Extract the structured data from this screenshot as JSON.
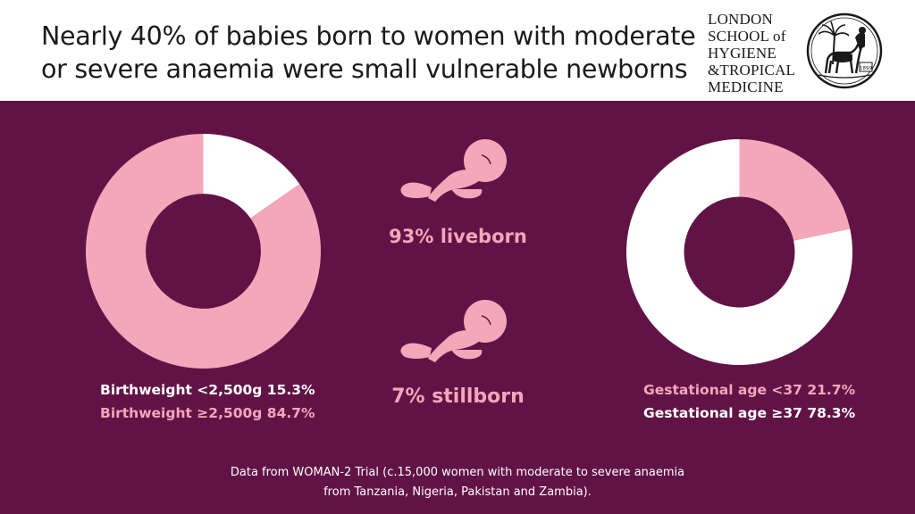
{
  "headline": {
    "line1": "Nearly 40% of babies born to women with moderate",
    "line2": "or severe anaemia were small vulnerable newborns"
  },
  "logo": {
    "line1": "LONDON",
    "line2": "SCHOOL of",
    "line3": "HYGIENE",
    "line4": "&TROPICAL",
    "line5": "MEDICINE",
    "emblem_label": "1899"
  },
  "colors": {
    "background": "#621346",
    "pink": "#f4a7b9",
    "white": "#ffffff"
  },
  "stats": {
    "liveborn": "93% liveborn",
    "stillborn": "7% stillborn"
  },
  "icons": [
    "fetus-icon",
    "fetus-icon"
  ],
  "chart_data": [
    {
      "type": "pie",
      "variant": "donut",
      "labels": [
        "Birthweight <2,500g",
        "Birthweight ≥2,500g"
      ],
      "values": [
        15.3,
        84.7
      ],
      "colors": [
        "#ffffff",
        "#f4a7b9"
      ],
      "legend": [
        {
          "text": "Birthweight <2,500g 15.3%",
          "color": "#ffffff"
        },
        {
          "text": "Birthweight ≥2,500g 84.7%",
          "color": "#f4a7b9"
        }
      ],
      "legend_position": "bottom"
    },
    {
      "type": "pie",
      "variant": "donut",
      "labels": [
        "Gestational age <37",
        "Gestational age ≥37"
      ],
      "values": [
        21.7,
        78.3
      ],
      "colors": [
        "#f4a7b9",
        "#ffffff"
      ],
      "legend": [
        {
          "text": "Gestational age <37 21.7%",
          "color": "#f4a7b9"
        },
        {
          "text": "Gestational age ≥37 78.3%",
          "color": "#ffffff"
        }
      ],
      "legend_position": "bottom"
    }
  ],
  "footnote": {
    "line1": "Data from WOMAN-2 Trial (c.15,000 women with moderate to severe anaemia",
    "line2": "from Tanzania, Nigeria, Pakistan and Zambia)."
  }
}
